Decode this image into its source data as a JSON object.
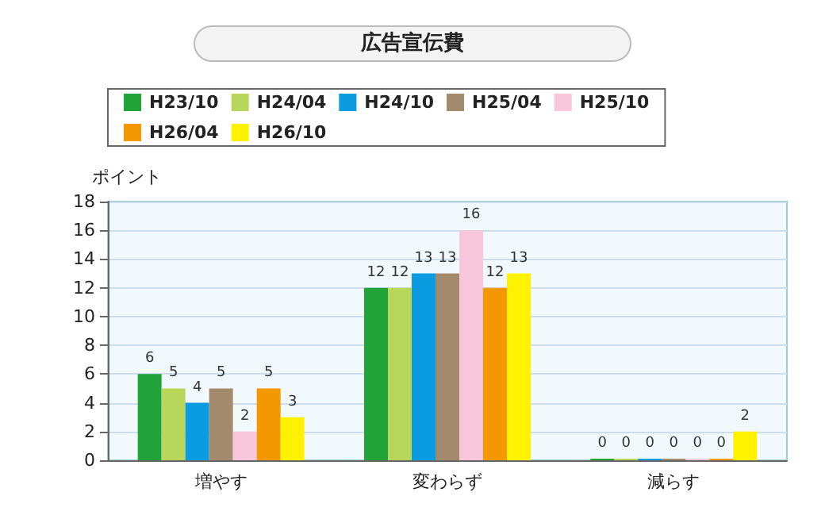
{
  "chart_data": {
    "type": "bar",
    "title": "広告宣伝費",
    "ylabel": "ポイント",
    "categories": [
      "増やす",
      "変わらず",
      "減らす"
    ],
    "series": [
      {
        "name": "H23/10",
        "color": "#22a33a",
        "values": [
          6,
          12,
          0
        ]
      },
      {
        "name": "H24/04",
        "color": "#b8d65a",
        "values": [
          5,
          12,
          0
        ]
      },
      {
        "name": "H24/10",
        "color": "#0a9be0",
        "values": [
          4,
          13,
          0
        ]
      },
      {
        "name": "H25/04",
        "color": "#a38a6c",
        "values": [
          5,
          13,
          0
        ]
      },
      {
        "name": "H25/10",
        "color": "#f7c6da",
        "values": [
          2,
          16,
          0
        ]
      },
      {
        "name": "H26/04",
        "color": "#f39800",
        "values": [
          5,
          12,
          0
        ]
      },
      {
        "name": "H26/10",
        "color": "#fff200",
        "values": [
          3,
          13,
          2
        ]
      }
    ],
    "ylim": [
      0,
      18
    ],
    "yticks": [
      0,
      2,
      4,
      6,
      8,
      10,
      12,
      14,
      16,
      18
    ],
    "grid": "y",
    "legend": "top",
    "data_labels": true
  }
}
